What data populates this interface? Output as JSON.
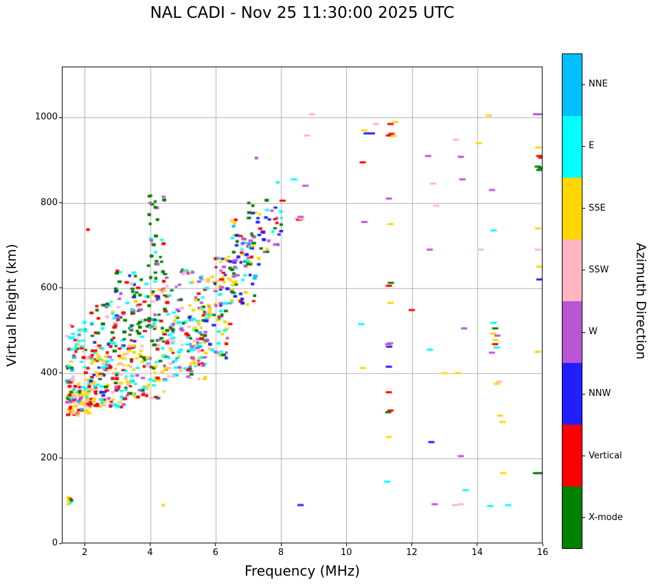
{
  "chart_data": {
    "type": "scatter",
    "title": "NAL CADI - Nov 25 11:30:00 2025 UTC",
    "xlabel": "Frequency (MHz)",
    "ylabel": "Virtual height (km)",
    "legend_title": "Azimuth Direction",
    "legend_position": "right-colorbar",
    "xlim": [
      1.3,
      16
    ],
    "ylim": [
      0,
      1120
    ],
    "xticks": [
      2,
      4,
      6,
      8,
      10,
      12,
      14,
      16
    ],
    "yticks": [
      0,
      200,
      400,
      600,
      800,
      1000
    ],
    "grid": true,
    "grid_color": "#b0b0b0",
    "categories_top_to_bottom": [
      "NNE",
      "E",
      "SSE",
      "SSW",
      "W",
      "NNW",
      "Vertical",
      "X-mode"
    ],
    "colors": {
      "NNE": "#00BFFF",
      "E": "#00FFFF",
      "SSE": "#FFD700",
      "SSW": "#FFB6C1",
      "W": "#BA55D3",
      "NNW": "#2020FF",
      "Vertical": "#FF0000",
      "X-mode": "#008000"
    },
    "seed": 20251125,
    "points": [
      [
        1.5,
        108,
        "SSE"
      ],
      [
        1.56,
        104,
        "Vertical"
      ],
      [
        1.5,
        100,
        "SSE"
      ],
      [
        1.6,
        101,
        "X-mode"
      ],
      [
        1.56,
        95,
        "E"
      ],
      [
        1.5,
        92,
        "SSE"
      ],
      [
        4.4,
        90,
        "SSE"
      ],
      [
        8.6,
        90,
        "NNW"
      ],
      [
        12.7,
        92,
        "W"
      ],
      [
        13.32,
        90,
        "SSW"
      ],
      [
        13.5,
        92,
        "SSW"
      ],
      [
        14.4,
        88,
        "E"
      ],
      [
        14.95,
        90,
        "E"
      ],
      [
        2.1,
        737,
        "Vertical"
      ],
      [
        3.0,
        640,
        "Vertical"
      ],
      [
        2.95,
        598,
        "X-mode"
      ],
      [
        6.5,
        758,
        "SSE"
      ],
      [
        6.58,
        752,
        "SSE"
      ],
      [
        6.62,
        760,
        "Vertical"
      ],
      [
        6.55,
        745,
        "NNE"
      ],
      [
        7.25,
        905,
        "W"
      ],
      [
        7.9,
        848,
        "E"
      ],
      [
        8.05,
        805,
        "Vertical"
      ],
      [
        8.4,
        855,
        "E"
      ],
      [
        8.5,
        763,
        "SSW"
      ],
      [
        8.56,
        760,
        "Vertical"
      ],
      [
        8.63,
        762,
        "SSW"
      ],
      [
        8.6,
        767,
        "W"
      ],
      [
        8.75,
        840,
        "W"
      ],
      [
        8.8,
        958,
        "SSW"
      ],
      [
        8.95,
        1008,
        "SSW"
      ],
      [
        10.45,
        515,
        "E"
      ],
      [
        10.5,
        412,
        "SSE"
      ],
      [
        10.55,
        755,
        "W"
      ],
      [
        10.5,
        895,
        "Vertical"
      ],
      [
        10.55,
        970,
        "SSE"
      ],
      [
        10.62,
        963,
        "NNW"
      ],
      [
        10.78,
        963,
        "NNW"
      ],
      [
        10.9,
        985,
        "SSW"
      ],
      [
        11.25,
        145,
        "E"
      ],
      [
        11.3,
        250,
        "SSE"
      ],
      [
        11.28,
        308,
        "X-mode"
      ],
      [
        11.35,
        312,
        "Vertical"
      ],
      [
        11.3,
        355,
        "Vertical"
      ],
      [
        11.3,
        415,
        "NNW"
      ],
      [
        11.28,
        468,
        "W"
      ],
      [
        11.34,
        470,
        "W"
      ],
      [
        11.31,
        462,
        "NNW"
      ],
      [
        11.35,
        565,
        "SSE"
      ],
      [
        11.3,
        605,
        "Vertical"
      ],
      [
        11.36,
        612,
        "X-mode"
      ],
      [
        11.35,
        750,
        "SSE"
      ],
      [
        11.3,
        810,
        "W"
      ],
      [
        11.3,
        958,
        "Vertical"
      ],
      [
        11.38,
        962,
        "Vertical"
      ],
      [
        11.45,
        957,
        "SSE"
      ],
      [
        11.35,
        985,
        "Vertical"
      ],
      [
        11.5,
        990,
        "SSE"
      ],
      [
        12.0,
        548,
        "Vertical"
      ],
      [
        12.5,
        910,
        "W"
      ],
      [
        12.55,
        455,
        "E"
      ],
      [
        12.6,
        238,
        "NNW"
      ],
      [
        12.55,
        690,
        "W"
      ],
      [
        12.65,
        845,
        "SSW"
      ],
      [
        12.75,
        793,
        "SSW"
      ],
      [
        13.0,
        400,
        "SSE"
      ],
      [
        13.4,
        400,
        "SSE"
      ],
      [
        13.35,
        948,
        "SSW"
      ],
      [
        13.5,
        908,
        "W"
      ],
      [
        13.55,
        855,
        "W"
      ],
      [
        13.6,
        505,
        "W"
      ],
      [
        13.5,
        205,
        "W"
      ],
      [
        13.65,
        125,
        "E"
      ],
      [
        14.05,
        940,
        "SSE"
      ],
      [
        14.1,
        690,
        "SSW"
      ],
      [
        14.35,
        1005,
        "SSE"
      ],
      [
        14.45,
        830,
        "W"
      ],
      [
        14.5,
        735,
        "E"
      ],
      [
        14.5,
        518,
        "E"
      ],
      [
        14.55,
        505,
        "X-mode"
      ],
      [
        14.5,
        492,
        "SSE"
      ],
      [
        14.56,
        478,
        "SSE"
      ],
      [
        14.55,
        468,
        "Vertical"
      ],
      [
        14.6,
        460,
        "E"
      ],
      [
        14.62,
        488,
        "W"
      ],
      [
        14.45,
        448,
        "W"
      ],
      [
        14.6,
        375,
        "SSE"
      ],
      [
        14.68,
        380,
        "SSW"
      ],
      [
        14.7,
        300,
        "SSE"
      ],
      [
        14.78,
        285,
        "SSE"
      ],
      [
        14.8,
        165,
        "SSE"
      ],
      [
        15.8,
        1008,
        "W"
      ],
      [
        15.95,
        1008,
        "W"
      ],
      [
        15.87,
        930,
        "SSE"
      ],
      [
        15.9,
        910,
        "Vertical"
      ],
      [
        15.96,
        906,
        "Vertical"
      ],
      [
        15.85,
        885,
        "X-mode"
      ],
      [
        15.95,
        882,
        "X-mode"
      ],
      [
        15.9,
        877,
        "X-mode"
      ],
      [
        15.86,
        740,
        "SSE"
      ],
      [
        15.86,
        690,
        "SSW"
      ],
      [
        15.9,
        650,
        "SSE"
      ],
      [
        15.9,
        620,
        "NNW"
      ],
      [
        15.85,
        450,
        "SSE"
      ],
      [
        15.8,
        165,
        "X-mode"
      ],
      [
        15.92,
        165,
        "X-mode"
      ]
    ],
    "clusters": [
      {
        "x": [
          1.45,
          2.2
        ],
        "y": [
          300,
          385
        ],
        "n": 95,
        "mix": {
          "SSE": 0.3,
          "Vertical": 0.22,
          "SSW": 0.16,
          "E": 0.14,
          "X-mode": 0.06,
          "NNE": 0.06,
          "W": 0.06
        }
      },
      {
        "x": [
          1.45,
          2.05
        ],
        "y": [
          385,
          520
        ],
        "n": 40,
        "mix": {
          "E": 0.3,
          "Vertical": 0.18,
          "X-mode": 0.14,
          "SSE": 0.1,
          "NNE": 0.14,
          "SSW": 0.14
        }
      },
      {
        "x": [
          2.0,
          3.2
        ],
        "y": [
          320,
          440
        ],
        "n": 120,
        "mix": {
          "Vertical": 0.3,
          "SSE": 0.24,
          "E": 0.14,
          "SSW": 0.1,
          "X-mode": 0.1,
          "W": 0.06,
          "NNW": 0.06
        }
      },
      {
        "x": [
          2.2,
          3.5
        ],
        "y": [
          440,
          570
        ],
        "n": 75,
        "mix": {
          "Vertical": 0.28,
          "X-mode": 0.22,
          "E": 0.14,
          "SSE": 0.1,
          "W": 0.1,
          "NNW": 0.06,
          "SSW": 0.1
        }
      },
      {
        "x": [
          2.8,
          3.7
        ],
        "y": [
          570,
          660
        ],
        "n": 18,
        "mix": {
          "Vertical": 0.4,
          "X-mode": 0.28,
          "W": 0.12,
          "NNW": 0.1,
          "E": 0.1
        }
      },
      {
        "x": [
          3.2,
          4.5
        ],
        "y": [
          340,
          465
        ],
        "n": 95,
        "mix": {
          "SSE": 0.3,
          "Vertical": 0.18,
          "E": 0.18,
          "X-mode": 0.16,
          "SSW": 0.1,
          "W": 0.08
        }
      },
      {
        "x": [
          3.4,
          4.7
        ],
        "y": [
          465,
          625
        ],
        "n": 95,
        "mix": {
          "X-mode": 0.34,
          "Vertical": 0.14,
          "E": 0.14,
          "W": 0.12,
          "SSE": 0.1,
          "NNW": 0.08,
          "SSW": 0.08
        }
      },
      {
        "x": [
          3.95,
          4.5
        ],
        "y": [
          625,
          845
        ],
        "n": 30,
        "mix": {
          "X-mode": 0.7,
          "Vertical": 0.1,
          "W": 0.1,
          "E": 0.1
        }
      },
      {
        "x": [
          4.5,
          5.7
        ],
        "y": [
          385,
          525
        ],
        "n": 115,
        "mix": {
          "E": 0.24,
          "SSE": 0.2,
          "Vertical": 0.12,
          "SSW": 0.12,
          "W": 0.12,
          "X-mode": 0.12,
          "NNE": 0.08
        }
      },
      {
        "x": [
          4.7,
          5.9
        ],
        "y": [
          525,
          645
        ],
        "n": 60,
        "mix": {
          "W": 0.2,
          "E": 0.2,
          "X-mode": 0.14,
          "NNW": 0.1,
          "Vertical": 0.1,
          "SSE": 0.16,
          "SSW": 0.1
        }
      },
      {
        "x": [
          5.7,
          6.45
        ],
        "y": [
          435,
          565
        ],
        "n": 45,
        "mix": {
          "E": 0.24,
          "SSE": 0.2,
          "W": 0.16,
          "NNW": 0.1,
          "X-mode": 0.1,
          "Vertical": 0.1,
          "SSW": 0.1
        }
      },
      {
        "x": [
          5.95,
          6.65
        ],
        "y": [
          565,
          675
        ],
        "n": 45,
        "mix": {
          "SSE": 0.34,
          "Vertical": 0.14,
          "NNW": 0.16,
          "W": 0.14,
          "E": 0.12,
          "X-mode": 0.1
        }
      },
      {
        "x": [
          6.45,
          7.25
        ],
        "y": [
          560,
          725
        ],
        "n": 55,
        "mix": {
          "NNW": 0.2,
          "W": 0.16,
          "E": 0.16,
          "SSE": 0.14,
          "X-mode": 0.14,
          "Vertical": 0.1,
          "NNE": 0.1
        }
      },
      {
        "x": [
          6.95,
          7.6
        ],
        "y": [
          640,
          800
        ],
        "n": 32,
        "mix": {
          "NNW": 0.24,
          "X-mode": 0.2,
          "E": 0.2,
          "W": 0.16,
          "SSE": 0.1,
          "Vertical": 0.1
        }
      },
      {
        "x": [
          7.55,
          8.05
        ],
        "y": [
          700,
          808
        ],
        "n": 18,
        "mix": {
          "NNW": 0.3,
          "X-mode": 0.24,
          "E": 0.2,
          "W": 0.16,
          "Vertical": 0.1
        }
      }
    ],
    "marker": {
      "dense_w": 5,
      "dense_h": 4,
      "sparse_w": 9,
      "sparse_h": 3
    }
  }
}
